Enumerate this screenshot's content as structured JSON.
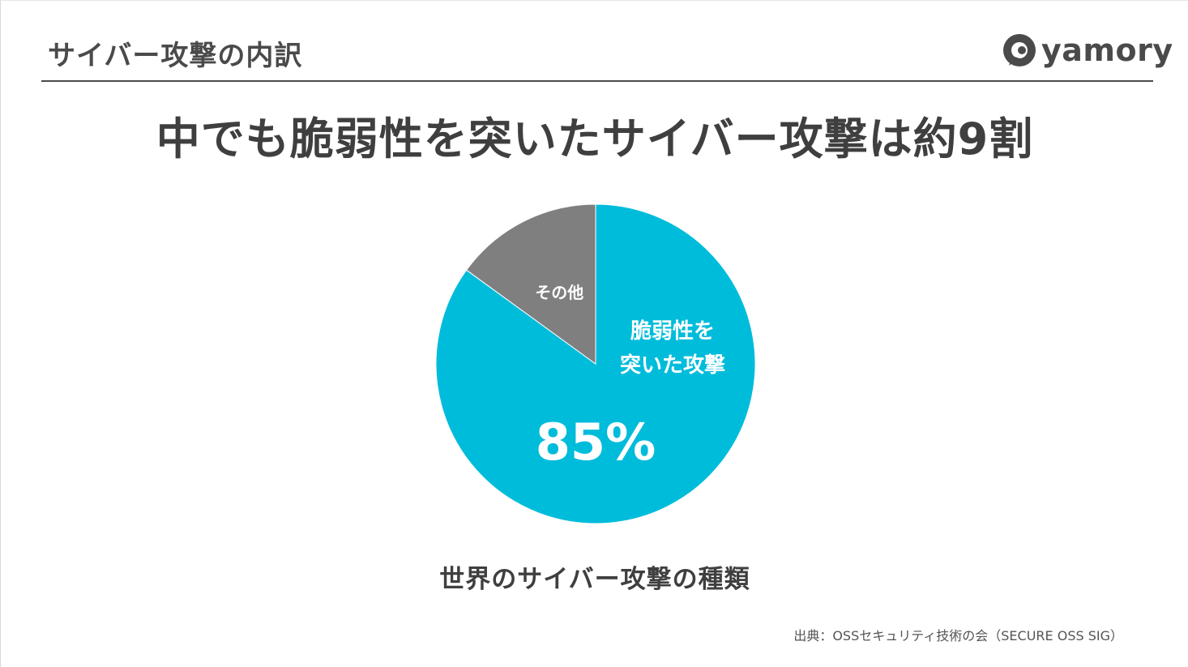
{
  "header": {
    "title": "サイバー攻撃の内訳",
    "logo_text": "yamory",
    "logo_icon": "yamory-logo-icon"
  },
  "headline": "中でも脆弱性を突いたサイバー攻撃は約9割",
  "chart_data": {
    "type": "pie",
    "title": "",
    "caption": "世界のサイバー攻撃の種類",
    "slices": [
      {
        "label_lines": [
          "脆弱性を",
          "突いた攻撃"
        ],
        "value": 85,
        "value_label": "85%",
        "color": "#00bcdb"
      },
      {
        "label_lines": [
          "その他"
        ],
        "value": 15,
        "value_label": "",
        "color": "#7f7f7f"
      }
    ],
    "start_angle_deg": 0,
    "direction": "clockwise",
    "legend": "none"
  },
  "source": "出典：OSSセキュリティ技術の会（SECURE OSS SIG）",
  "colors": {
    "accent": "#00bcdb",
    "other": "#7f7f7f",
    "text": "#4a4a4a"
  }
}
